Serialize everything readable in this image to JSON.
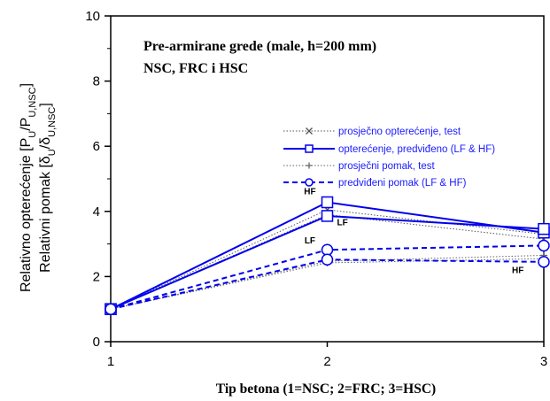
{
  "chart_data": {
    "type": "line",
    "title": "Pre-armirane grede (male,  h=200 mm)",
    "subtitle": "NSC, FRC i HSC",
    "xlabel": "Tip betona (1=NSC; 2=FRC; 3=HSC)",
    "ylabel_line1": "Relativno opterećenje  [P",
    "ylabel_line1_sub": "U",
    "ylabel_line1_mid": "/P",
    "ylabel_line1_sub2": "U,NSC",
    "ylabel_line1_end": "]",
    "ylabel_line2": "Relativni pomak [δ",
    "ylabel_line2_sub": "U",
    "ylabel_line2_mid": "/δ",
    "ylabel_line2_sub2": "U,NSC",
    "ylabel_line2_end": "]",
    "xlim": [
      1,
      3
    ],
    "ylim": [
      0,
      10
    ],
    "x_ticks": [
      "1",
      "2",
      "3"
    ],
    "y_ticks": [
      "0",
      "2",
      "4",
      "6",
      "8",
      "10"
    ],
    "grid": false,
    "legend_position": "center-right",
    "series": [
      {
        "name": "prosječno opterećenje, test",
        "color": "#555555",
        "style": "dotted",
        "marker": "x",
        "lines": [
          {
            "x": [
              1,
              2,
              3
            ],
            "y": [
              1.0,
              4.05,
              3.3
            ]
          },
          {
            "x": [
              1,
              2,
              3
            ],
            "y": [
              1.0,
              3.9,
              3.15
            ]
          }
        ]
      },
      {
        "name": "opterećenje, predviđeno (LF & HF)",
        "color": "#0000ee",
        "style": "solid",
        "marker": "square",
        "lines": [
          {
            "x": [
              1,
              2,
              3
            ],
            "y": [
              1.0,
              4.28,
              3.35
            ]
          },
          {
            "x": [
              1,
              2,
              3
            ],
            "y": [
              1.0,
              3.86,
              3.46
            ]
          }
        ]
      },
      {
        "name": "prosječni pomak, test",
        "color": "#666666",
        "style": "dotted",
        "marker": "plus",
        "lines": [
          {
            "x": [
              1,
              2,
              3
            ],
            "y": [
              1.0,
              2.47,
              2.65
            ]
          },
          {
            "x": [
              1,
              2,
              3
            ],
            "y": [
              1.0,
              2.42,
              2.55
            ]
          }
        ]
      },
      {
        "name": "predviđeni pomak (LF & HF)",
        "color": "#0000ee",
        "style": "dashed",
        "marker": "circle",
        "lines": [
          {
            "x": [
              1,
              2,
              3
            ],
            "y": [
              1.0,
              2.82,
              2.95
            ]
          },
          {
            "x": [
              1,
              2,
              3
            ],
            "y": [
              1.0,
              2.52,
              2.45
            ]
          }
        ]
      }
    ],
    "annotations": [
      {
        "text": "HF",
        "x": 1.92,
        "y": 4.52
      },
      {
        "text": "LF",
        "x": 2.07,
        "y": 3.58
      },
      {
        "text": "LF",
        "x": 1.92,
        "y": 3.02
      },
      {
        "text": "HF",
        "x": 2.88,
        "y": 2.1
      }
    ]
  }
}
